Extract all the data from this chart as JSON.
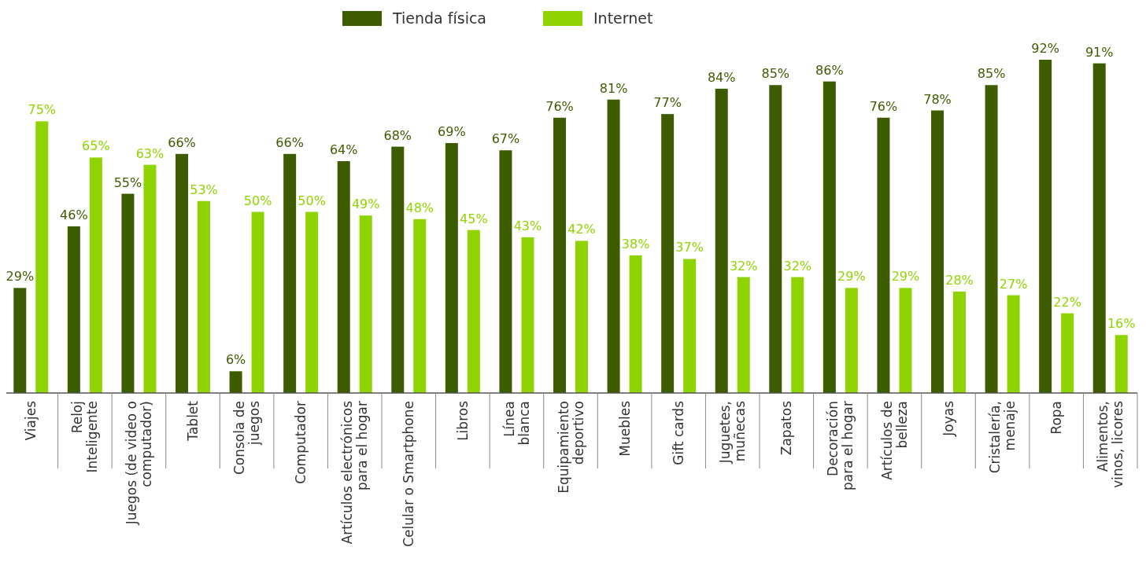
{
  "chart_data": {
    "type": "bar",
    "categories": [
      "Viajes",
      "Reloj\nInteligente",
      "Juegos (de video o\ncomputador)",
      "Tablet",
      "Consola de\njuegos",
      "Computador",
      "Artículos electrónicos\npara el hogar",
      "Celular o Smartphone",
      "Libros",
      "Línea\nblanca",
      "Equipamiento\ndeportivo",
      "Muebles",
      "Gift cards",
      "Juguetes,\nmuñecas",
      "Zapatos",
      "Decoración\npara el hogar",
      "Artículos de\nbelleza",
      "Joyas",
      "Cristalería,\nmenaje",
      "Ropa",
      "Alimentos,\nvinos, licores"
    ],
    "series": [
      {
        "name": "Tienda física",
        "color": "#3d5c00",
        "values": [
          29,
          46,
          55,
          66,
          6,
          66,
          64,
          68,
          69,
          67,
          76,
          81,
          77,
          84,
          85,
          86,
          76,
          78,
          85,
          92,
          91
        ],
        "value_labels": [
          "29%",
          "46%",
          "55%",
          "66%",
          "6%",
          "66%",
          "64%",
          "68%",
          "69%",
          "67%",
          "76%",
          "81%",
          "77%",
          "84%",
          "85%",
          "86%",
          "76%",
          "78%",
          "85%",
          "92%",
          "91%"
        ]
      },
      {
        "name": "Internet",
        "color": "#8fd400",
        "values": [
          75,
          65,
          63,
          53,
          50,
          50,
          49,
          48,
          45,
          43,
          42,
          38,
          37,
          32,
          32,
          29,
          29,
          28,
          27,
          22,
          16
        ],
        "value_labels": [
          "75%",
          "65%",
          "63%",
          "53%",
          "50%",
          "50%",
          "49%",
          "48%",
          "45%",
          "43%",
          "42%",
          "38%",
          "37%",
          "32%",
          "32%",
          "29%",
          "29%",
          "28%",
          "27%",
          "22%",
          "16%"
        ]
      }
    ],
    "legend": "top"
  }
}
